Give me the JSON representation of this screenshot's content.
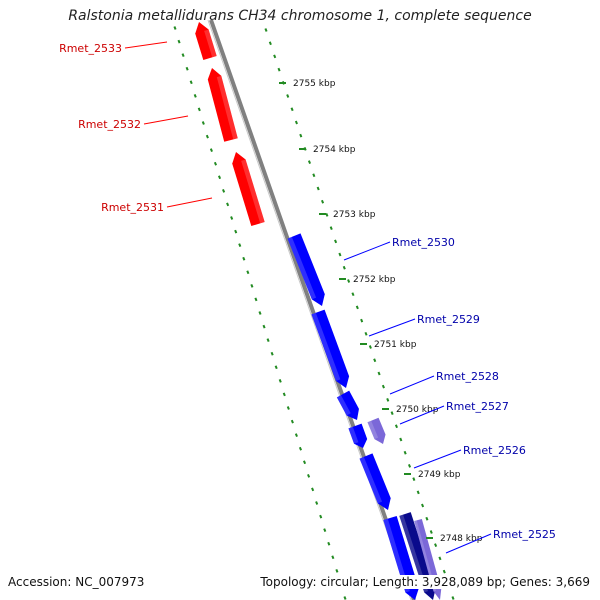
{
  "title": "Ralstonia metallidurans CH34 chromosome 1, complete sequence",
  "accession": "Accession: NC_007973",
  "topology": "Topology: circular; Length: 3,928,089 bp; Genes: 3,669",
  "colors": {
    "forward": "#ff0000",
    "reverse": "#0000ff",
    "reverse_light": "#7b68d8",
    "reverse_dark": "#0a0a8c",
    "backbone": "#808080",
    "ticks": "#228b22"
  },
  "ticks": [
    "2755 kbp",
    "2754 kbp",
    "2753 kbp",
    "2752 kbp",
    "2751 kbp",
    "2750 kbp",
    "2749 kbp",
    "2748 kbp"
  ],
  "forward_genes": [
    "Rmet_2533",
    "Rmet_2532",
    "Rmet_2531"
  ],
  "reverse_genes": [
    "Rmet_2530",
    "Rmet_2529",
    "Rmet_2528",
    "Rmet_2527",
    "Rmet_2526",
    "Rmet_2525"
  ]
}
